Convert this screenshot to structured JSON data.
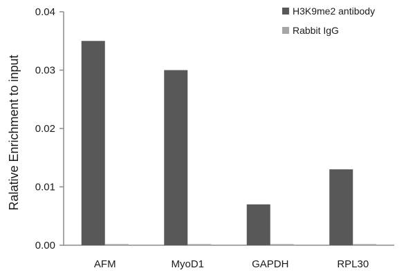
{
  "chart_data": {
    "type": "bar",
    "title": "",
    "xlabel": "",
    "ylabel": "Ralative Enrichment to input",
    "ylim": [
      0,
      0.04
    ],
    "yticks": [
      "0.00",
      "0.01",
      "0.02",
      "0.03",
      "0.04"
    ],
    "categories": [
      "AFM",
      "MyoD1",
      "GAPDH",
      "RPL30"
    ],
    "series": [
      {
        "name": "H3K9me2 antibody",
        "values": [
          0.035,
          0.03,
          0.007,
          0.013
        ],
        "color": "#585858"
      },
      {
        "name": "Rabbit IgG",
        "values": [
          0.0002,
          0.0002,
          0.0002,
          0.0002
        ],
        "color": "#a6a6a6"
      }
    ],
    "grid": false,
    "legend_position": "top-right"
  }
}
